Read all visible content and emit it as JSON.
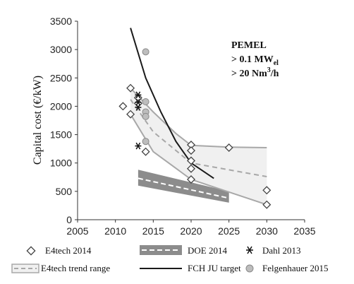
{
  "chart_data": {
    "type": "line",
    "title": "",
    "xlabel": "",
    "ylabel": "Capital cost (€/kW)",
    "xlim": [
      2005,
      2035
    ],
    "ylim": [
      0,
      3500
    ],
    "xticks": [
      2005,
      2010,
      2015,
      2020,
      2025,
      2030,
      2035
    ],
    "yticks": [
      0,
      500,
      1000,
      1500,
      2000,
      2500,
      3000,
      3500
    ],
    "grid": false,
    "annotation": {
      "line1": "PEMEL",
      "line2_prefix": "> 0.1 MW",
      "line2_sub": "el",
      "line3_prefix": "> 20 Nm",
      "line3_sup": "3",
      "line3_suffix": "/h"
    },
    "legend": {
      "e4tech": "E4tech 2014",
      "trend": "E4tech trend range",
      "doe": "DOE 2014",
      "fch": "FCH JU target",
      "dahl": "Dahl 2013",
      "felgenhauer": "Felgenhauer 2015"
    },
    "colors": {
      "trend_line": "#a8a8a8",
      "trend_fill": "#f0f0f0",
      "doe_band": "#8c8c8c",
      "doe_mid": "#ffffff",
      "fch": "#1a1a1a",
      "felgenhauer": "#bdbdbd"
    },
    "series": {
      "e4tech_points": [
        [
          2011,
          2000
        ],
        [
          2012,
          2320
        ],
        [
          2012,
          1860
        ],
        [
          2013,
          2150
        ],
        [
          2013,
          2050
        ],
        [
          2014,
          1200
        ],
        [
          2020,
          1320
        ],
        [
          2020,
          1220
        ],
        [
          2020,
          1040
        ],
        [
          2020,
          900
        ],
        [
          2020,
          710
        ],
        [
          2025,
          1270
        ],
        [
          2030,
          520
        ],
        [
          2030,
          265
        ]
      ],
      "trend_upper": [
        [
          2012,
          2320
        ],
        [
          2015,
          1900
        ],
        [
          2018,
          1520
        ],
        [
          2020,
          1310
        ],
        [
          2025,
          1280
        ],
        [
          2030,
          1270
        ]
      ],
      "trend_lower": [
        [
          2012,
          1860
        ],
        [
          2015,
          1200
        ],
        [
          2020,
          710
        ],
        [
          2030,
          265
        ]
      ],
      "trend_mid": [
        [
          2012,
          2120
        ],
        [
          2015,
          1550
        ],
        [
          2020,
          1000
        ],
        [
          2030,
          760
        ]
      ],
      "doe_upper": [
        [
          2013,
          880
        ],
        [
          2025,
          500
        ]
      ],
      "doe_lower": [
        [
          2013,
          600
        ],
        [
          2025,
          300
        ]
      ],
      "doe_mid": [
        [
          2013,
          730
        ],
        [
          2025,
          380
        ]
      ],
      "fch_target": [
        [
          2012,
          3380
        ],
        [
          2014,
          2500
        ],
        [
          2016,
          1900
        ],
        [
          2018,
          1380
        ],
        [
          2020,
          1000
        ],
        [
          2023,
          730
        ]
      ],
      "dahl_points": [
        [
          2013,
          2200
        ],
        [
          2013,
          2070
        ],
        [
          2013,
          1980
        ],
        [
          2013,
          1300
        ]
      ],
      "felgenhauer_points": [
        [
          2014,
          2960
        ],
        [
          2014,
          2080
        ],
        [
          2014,
          1900
        ],
        [
          2014,
          1820
        ],
        [
          2014,
          1380
        ]
      ]
    }
  }
}
